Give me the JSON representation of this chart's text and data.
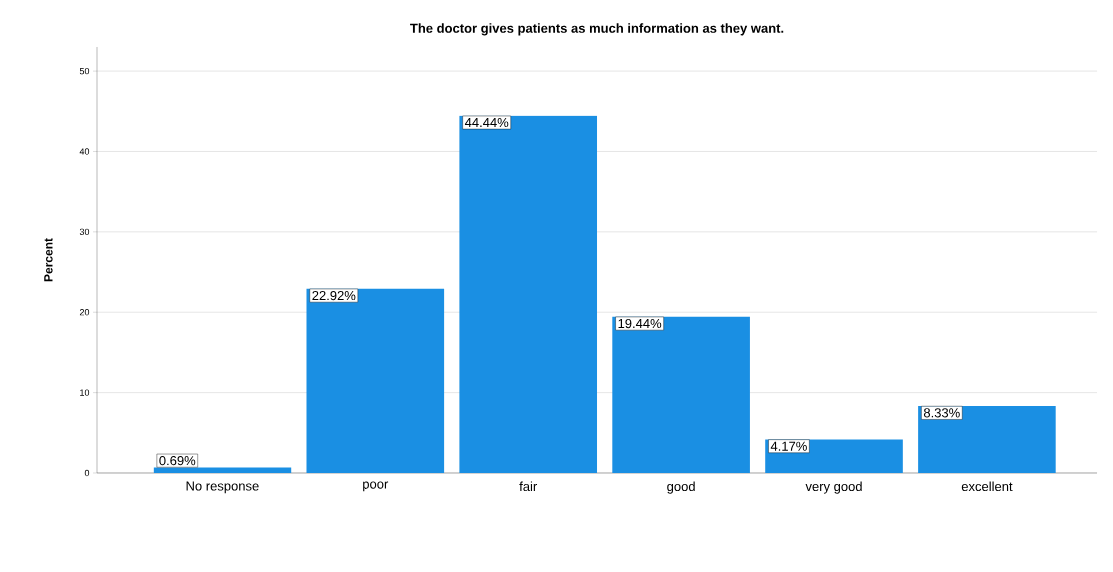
{
  "chart_data": {
    "type": "bar",
    "title": "The doctor gives patients as much information as they want.",
    "ylabel": "Percent",
    "categories": [
      "No response",
      "poor",
      "fair",
      "good",
      "very good",
      "excellent"
    ],
    "values": [
      0.69,
      22.92,
      44.44,
      19.44,
      4.17,
      8.33
    ],
    "value_labels": [
      "0.69%",
      "22.92%",
      "44.44%",
      "19.44%",
      "4.17%",
      "8.33%"
    ],
    "color": "#1a8fe3",
    "ylim": [
      0,
      53
    ],
    "yticks": [
      0,
      10,
      20,
      30,
      40,
      50
    ],
    "grid": "y"
  }
}
